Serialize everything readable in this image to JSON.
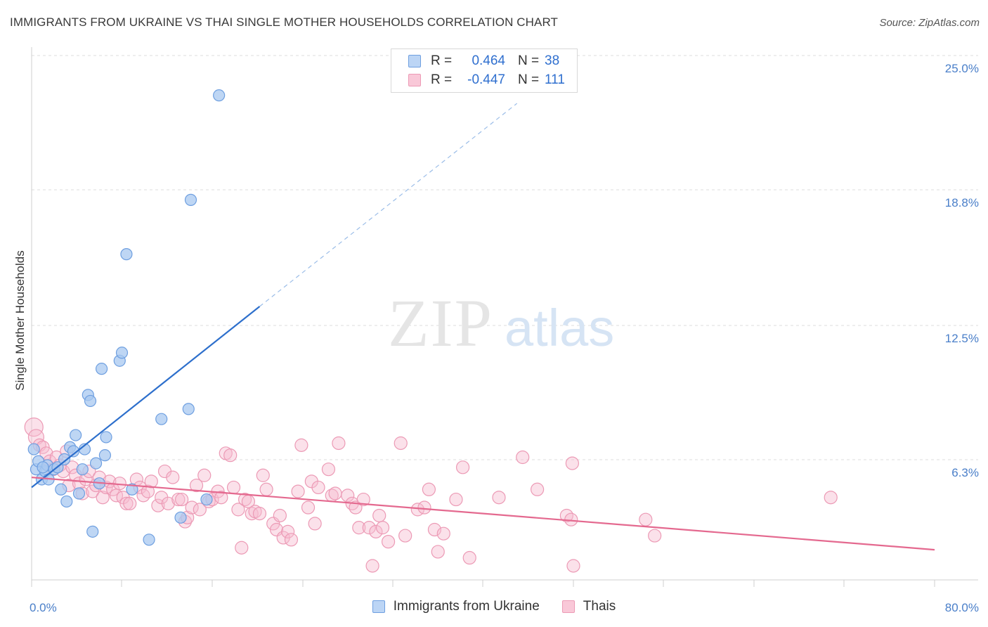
{
  "title": "IMMIGRANTS FROM UKRAINE VS THAI SINGLE MOTHER HOUSEHOLDS CORRELATION CHART",
  "source": "Source: ZipAtlas.com",
  "watermark": {
    "zip": "ZIP",
    "atlas": "atlas"
  },
  "legend": {
    "rows": [
      {
        "r_label": "R =",
        "r_value": "0.464",
        "n_label": "N =",
        "n_value": "38"
      },
      {
        "r_label": "R =",
        "r_value": "-0.447",
        "n_label": "N =",
        "n_value": "111"
      }
    ]
  },
  "bottom_legend": [
    "Immigrants from Ukraine",
    "Thais"
  ],
  "chart_data": {
    "type": "scatter",
    "ylabel": "Single Mother Households",
    "xlabel": "",
    "x_tick_labels": [
      "0.0%",
      "80.0%"
    ],
    "y_tick_labels": [
      "25.0%",
      "18.8%",
      "12.5%",
      "6.3%"
    ],
    "y_ticks": [
      25.0,
      18.8,
      12.5,
      6.3
    ],
    "xlim": [
      0,
      80
    ],
    "ylim": [
      0,
      26.5
    ],
    "grid": true,
    "colors": {
      "ukraine_fill": "#a8c8f0",
      "ukraine_stroke": "#6e9fe0",
      "ukraine_line": "#2d6fcc",
      "thai_fill": "#f7bcd0",
      "thai_stroke": "#ec9ab5",
      "thai_line": "#e4698f",
      "tick_text": "#4a7fc9"
    },
    "series": [
      {
        "name": "Immigrants from Ukraine",
        "trend": {
          "x0": 0,
          "y0": 4.6,
          "x1": 20.2,
          "y1": 13.6,
          "dashed_to_x": 43,
          "dashed_to_y": 23.7
        },
        "points": [
          [
            0.2,
            6.5
          ],
          [
            0.4,
            5.5
          ],
          [
            0.6,
            5.9
          ],
          [
            0.9,
            5.0
          ],
          [
            1.2,
            5.4
          ],
          [
            1.4,
            5.7
          ],
          [
            1.5,
            5.0
          ],
          [
            2.0,
            5.5
          ],
          [
            2.3,
            5.6
          ],
          [
            2.6,
            4.5
          ],
          [
            2.9,
            6.0
          ],
          [
            3.1,
            3.9
          ],
          [
            3.4,
            6.6
          ],
          [
            3.7,
            6.4
          ],
          [
            3.9,
            7.2
          ],
          [
            4.2,
            4.3
          ],
          [
            4.5,
            5.5
          ],
          [
            4.7,
            6.5
          ],
          [
            5.0,
            9.2
          ],
          [
            5.2,
            8.9
          ],
          [
            5.4,
            2.4
          ],
          [
            5.7,
            5.8
          ],
          [
            6.0,
            4.8
          ],
          [
            6.2,
            10.5
          ],
          [
            6.5,
            6.2
          ],
          [
            6.6,
            7.1
          ],
          [
            7.8,
            10.9
          ],
          [
            8.0,
            11.3
          ],
          [
            8.4,
            16.2
          ],
          [
            8.9,
            4.5
          ],
          [
            10.4,
            2.0
          ],
          [
            11.5,
            8.0
          ],
          [
            13.2,
            3.1
          ],
          [
            13.9,
            8.5
          ],
          [
            14.1,
            18.9
          ],
          [
            15.5,
            4.0
          ],
          [
            16.6,
            24.1
          ],
          [
            1.0,
            5.6
          ]
        ]
      },
      {
        "name": "Thais",
        "trend": {
          "x0": 0,
          "y0": 5.1,
          "x1": 80,
          "y1": 1.5
        },
        "points": [
          [
            0.2,
            7.6
          ],
          [
            0.4,
            7.1
          ],
          [
            0.7,
            6.7
          ],
          [
            1.0,
            6.6
          ],
          [
            1.3,
            6.3
          ],
          [
            1.6,
            5.9
          ],
          [
            1.9,
            5.5
          ],
          [
            2.2,
            6.1
          ],
          [
            2.5,
            5.7
          ],
          [
            2.8,
            5.4
          ],
          [
            3.1,
            6.4
          ],
          [
            3.3,
            4.7
          ],
          [
            3.6,
            5.6
          ],
          [
            3.9,
            5.2
          ],
          [
            4.2,
            4.8
          ],
          [
            4.5,
            4.3
          ],
          [
            4.8,
            5.0
          ],
          [
            5.1,
            5.4
          ],
          [
            5.4,
            4.4
          ],
          [
            5.7,
            4.7
          ],
          [
            6.0,
            5.1
          ],
          [
            6.3,
            4.1
          ],
          [
            6.6,
            4.6
          ],
          [
            6.9,
            4.9
          ],
          [
            7.2,
            4.5
          ],
          [
            7.5,
            4.2
          ],
          [
            7.8,
            4.8
          ],
          [
            8.1,
            4.1
          ],
          [
            8.4,
            3.8
          ],
          [
            8.7,
            3.8
          ],
          [
            9.3,
            5.0
          ],
          [
            9.6,
            4.6
          ],
          [
            9.9,
            4.2
          ],
          [
            10.3,
            4.4
          ],
          [
            10.6,
            4.9
          ],
          [
            11.2,
            3.7
          ],
          [
            11.5,
            4.1
          ],
          [
            11.8,
            5.4
          ],
          [
            12.1,
            3.8
          ],
          [
            12.5,
            5.1
          ],
          [
            13.0,
            4.0
          ],
          [
            13.3,
            4.0
          ],
          [
            13.6,
            2.9
          ],
          [
            13.8,
            3.1
          ],
          [
            14.2,
            3.6
          ],
          [
            14.6,
            4.7
          ],
          [
            14.9,
            3.5
          ],
          [
            15.3,
            5.2
          ],
          [
            15.7,
            3.9
          ],
          [
            16.0,
            4.0
          ],
          [
            16.5,
            4.4
          ],
          [
            16.8,
            4.1
          ],
          [
            17.2,
            6.3
          ],
          [
            17.6,
            6.2
          ],
          [
            17.9,
            4.6
          ],
          [
            18.3,
            3.5
          ],
          [
            18.6,
            1.6
          ],
          [
            18.9,
            4.0
          ],
          [
            19.2,
            3.9
          ],
          [
            19.5,
            3.3
          ],
          [
            19.8,
            3.4
          ],
          [
            20.2,
            3.3
          ],
          [
            20.5,
            5.2
          ],
          [
            20.8,
            4.5
          ],
          [
            21.4,
            2.8
          ],
          [
            21.7,
            2.5
          ],
          [
            22.0,
            3.2
          ],
          [
            22.3,
            2.1
          ],
          [
            22.7,
            2.4
          ],
          [
            23.0,
            2.0
          ],
          [
            23.6,
            4.4
          ],
          [
            23.9,
            6.7
          ],
          [
            24.5,
            3.6
          ],
          [
            24.8,
            4.9
          ],
          [
            25.1,
            2.8
          ],
          [
            25.4,
            4.6
          ],
          [
            26.3,
            5.5
          ],
          [
            26.6,
            4.2
          ],
          [
            26.9,
            4.3
          ],
          [
            27.2,
            6.8
          ],
          [
            28.0,
            4.2
          ],
          [
            28.4,
            3.8
          ],
          [
            28.7,
            3.6
          ],
          [
            29.0,
            2.6
          ],
          [
            29.4,
            4.0
          ],
          [
            29.9,
            2.6
          ],
          [
            30.2,
            0.7
          ],
          [
            30.5,
            2.4
          ],
          [
            30.8,
            3.2
          ],
          [
            31.1,
            2.6
          ],
          [
            31.6,
            1.9
          ],
          [
            32.7,
            6.8
          ],
          [
            33.1,
            2.2
          ],
          [
            34.2,
            3.5
          ],
          [
            34.8,
            3.6
          ],
          [
            35.2,
            4.5
          ],
          [
            35.7,
            2.5
          ],
          [
            36.0,
            1.4
          ],
          [
            36.5,
            2.3
          ],
          [
            37.6,
            4.0
          ],
          [
            38.2,
            5.6
          ],
          [
            38.8,
            1.1
          ],
          [
            41.4,
            4.1
          ],
          [
            43.5,
            6.1
          ],
          [
            44.8,
            4.5
          ],
          [
            47.4,
            3.2
          ],
          [
            47.8,
            3.0
          ],
          [
            47.9,
            5.8
          ],
          [
            48.0,
            0.7
          ],
          [
            54.4,
            3.0
          ],
          [
            55.2,
            2.2
          ],
          [
            70.8,
            4.1
          ]
        ]
      }
    ]
  }
}
